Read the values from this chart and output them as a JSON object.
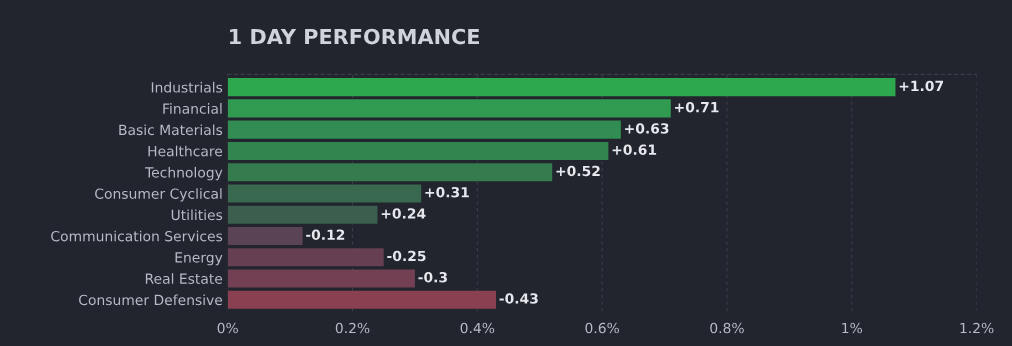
{
  "chart_data": {
    "type": "bar",
    "orientation": "horizontal",
    "title": "1 DAY PERFORMANCE",
    "categories": [
      "Industrials",
      "Financial",
      "Basic Materials",
      "Healthcare",
      "Technology",
      "Consumer Cyclical",
      "Utilities",
      "Communication Services",
      "Energy",
      "Real Estate",
      "Consumer Defensive"
    ],
    "values": [
      1.07,
      0.71,
      0.63,
      0.61,
      0.52,
      0.31,
      0.24,
      -0.12,
      -0.25,
      -0.3,
      -0.43
    ],
    "base": [
      0,
      0,
      0,
      0,
      0,
      0,
      0,
      0.12,
      0.25,
      0.3,
      0.43
    ],
    "value_labels": [
      "+1.07",
      "+0.71",
      "+0.63",
      "+0.61",
      "+0.52",
      "+0.31",
      "+0.24",
      "-0.12",
      "-0.25",
      "-0.3",
      "-0.43"
    ],
    "colors": [
      "#2ea84f",
      "#2f9a50",
      "#318d51",
      "#32854f",
      "#347b4e",
      "#38694f",
      "#3b5e4f",
      "#5a4352",
      "#663f52",
      "#733f52",
      "#8a4050"
    ],
    "xlim": [
      0,
      1.2
    ],
    "xticks": [
      {
        "value": 0,
        "label": "0%"
      },
      {
        "value": 0.2,
        "label": "0.2%"
      },
      {
        "value": 0.4,
        "label": "0.4%"
      },
      {
        "value": 0.6,
        "label": "0.6%"
      },
      {
        "value": 0.8,
        "label": "0.8%"
      },
      {
        "value": 1,
        "label": "1%"
      },
      {
        "value": 1.2,
        "label": "1.2%"
      }
    ],
    "grid": "x"
  }
}
